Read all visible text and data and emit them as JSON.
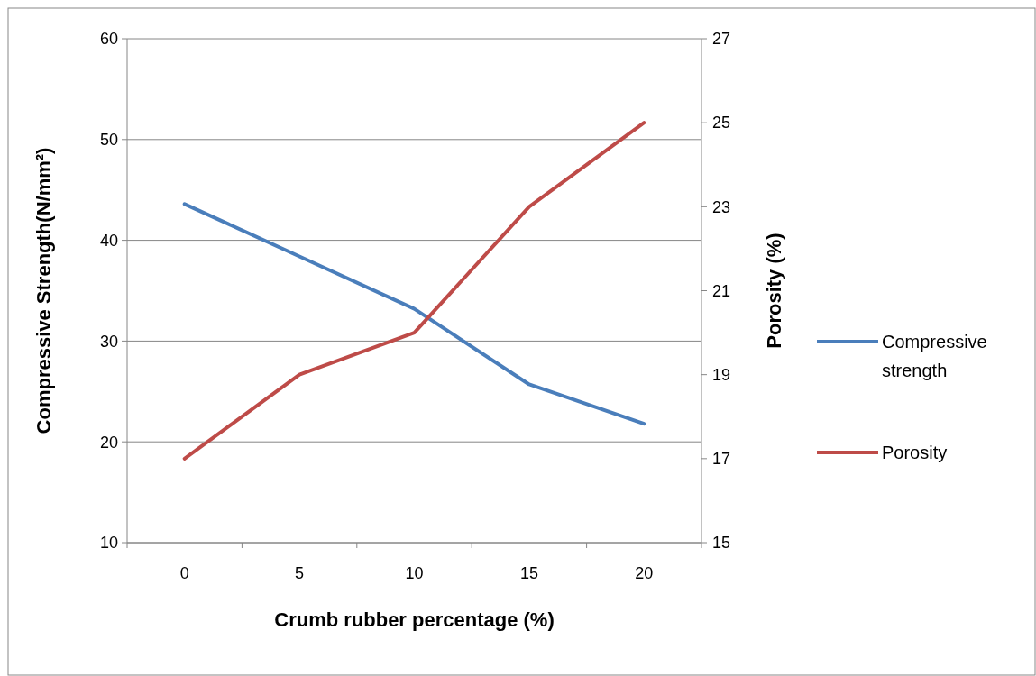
{
  "chart_data": {
    "type": "line",
    "xlabel": "Crumb rubber percentage (%)",
    "ylabel": "Compressive Strength(N/mm²)",
    "y2label": "Porosity (%)",
    "categories": [
      "0",
      "5",
      "10",
      "15",
      "20"
    ],
    "series": [
      {
        "name": "Compressive strength",
        "color": "#4a7ebb",
        "values": [
          43.6,
          38.4,
          33.2,
          25.7,
          21.8
        ]
      },
      {
        "name": "Porosity",
        "color": "#be4b48",
        "values": [
          17,
          19,
          20,
          23,
          25
        ],
        "axis": "y2"
      }
    ],
    "ylim": [
      10,
      60
    ],
    "yticks": [
      10,
      20,
      30,
      40,
      50,
      60
    ],
    "y2lim": [
      15,
      27
    ],
    "y2ticks": [
      15,
      17,
      19,
      21,
      23,
      25,
      27
    ],
    "grid": "y",
    "legend": "right",
    "marker": "none",
    "line_style": "solid"
  }
}
